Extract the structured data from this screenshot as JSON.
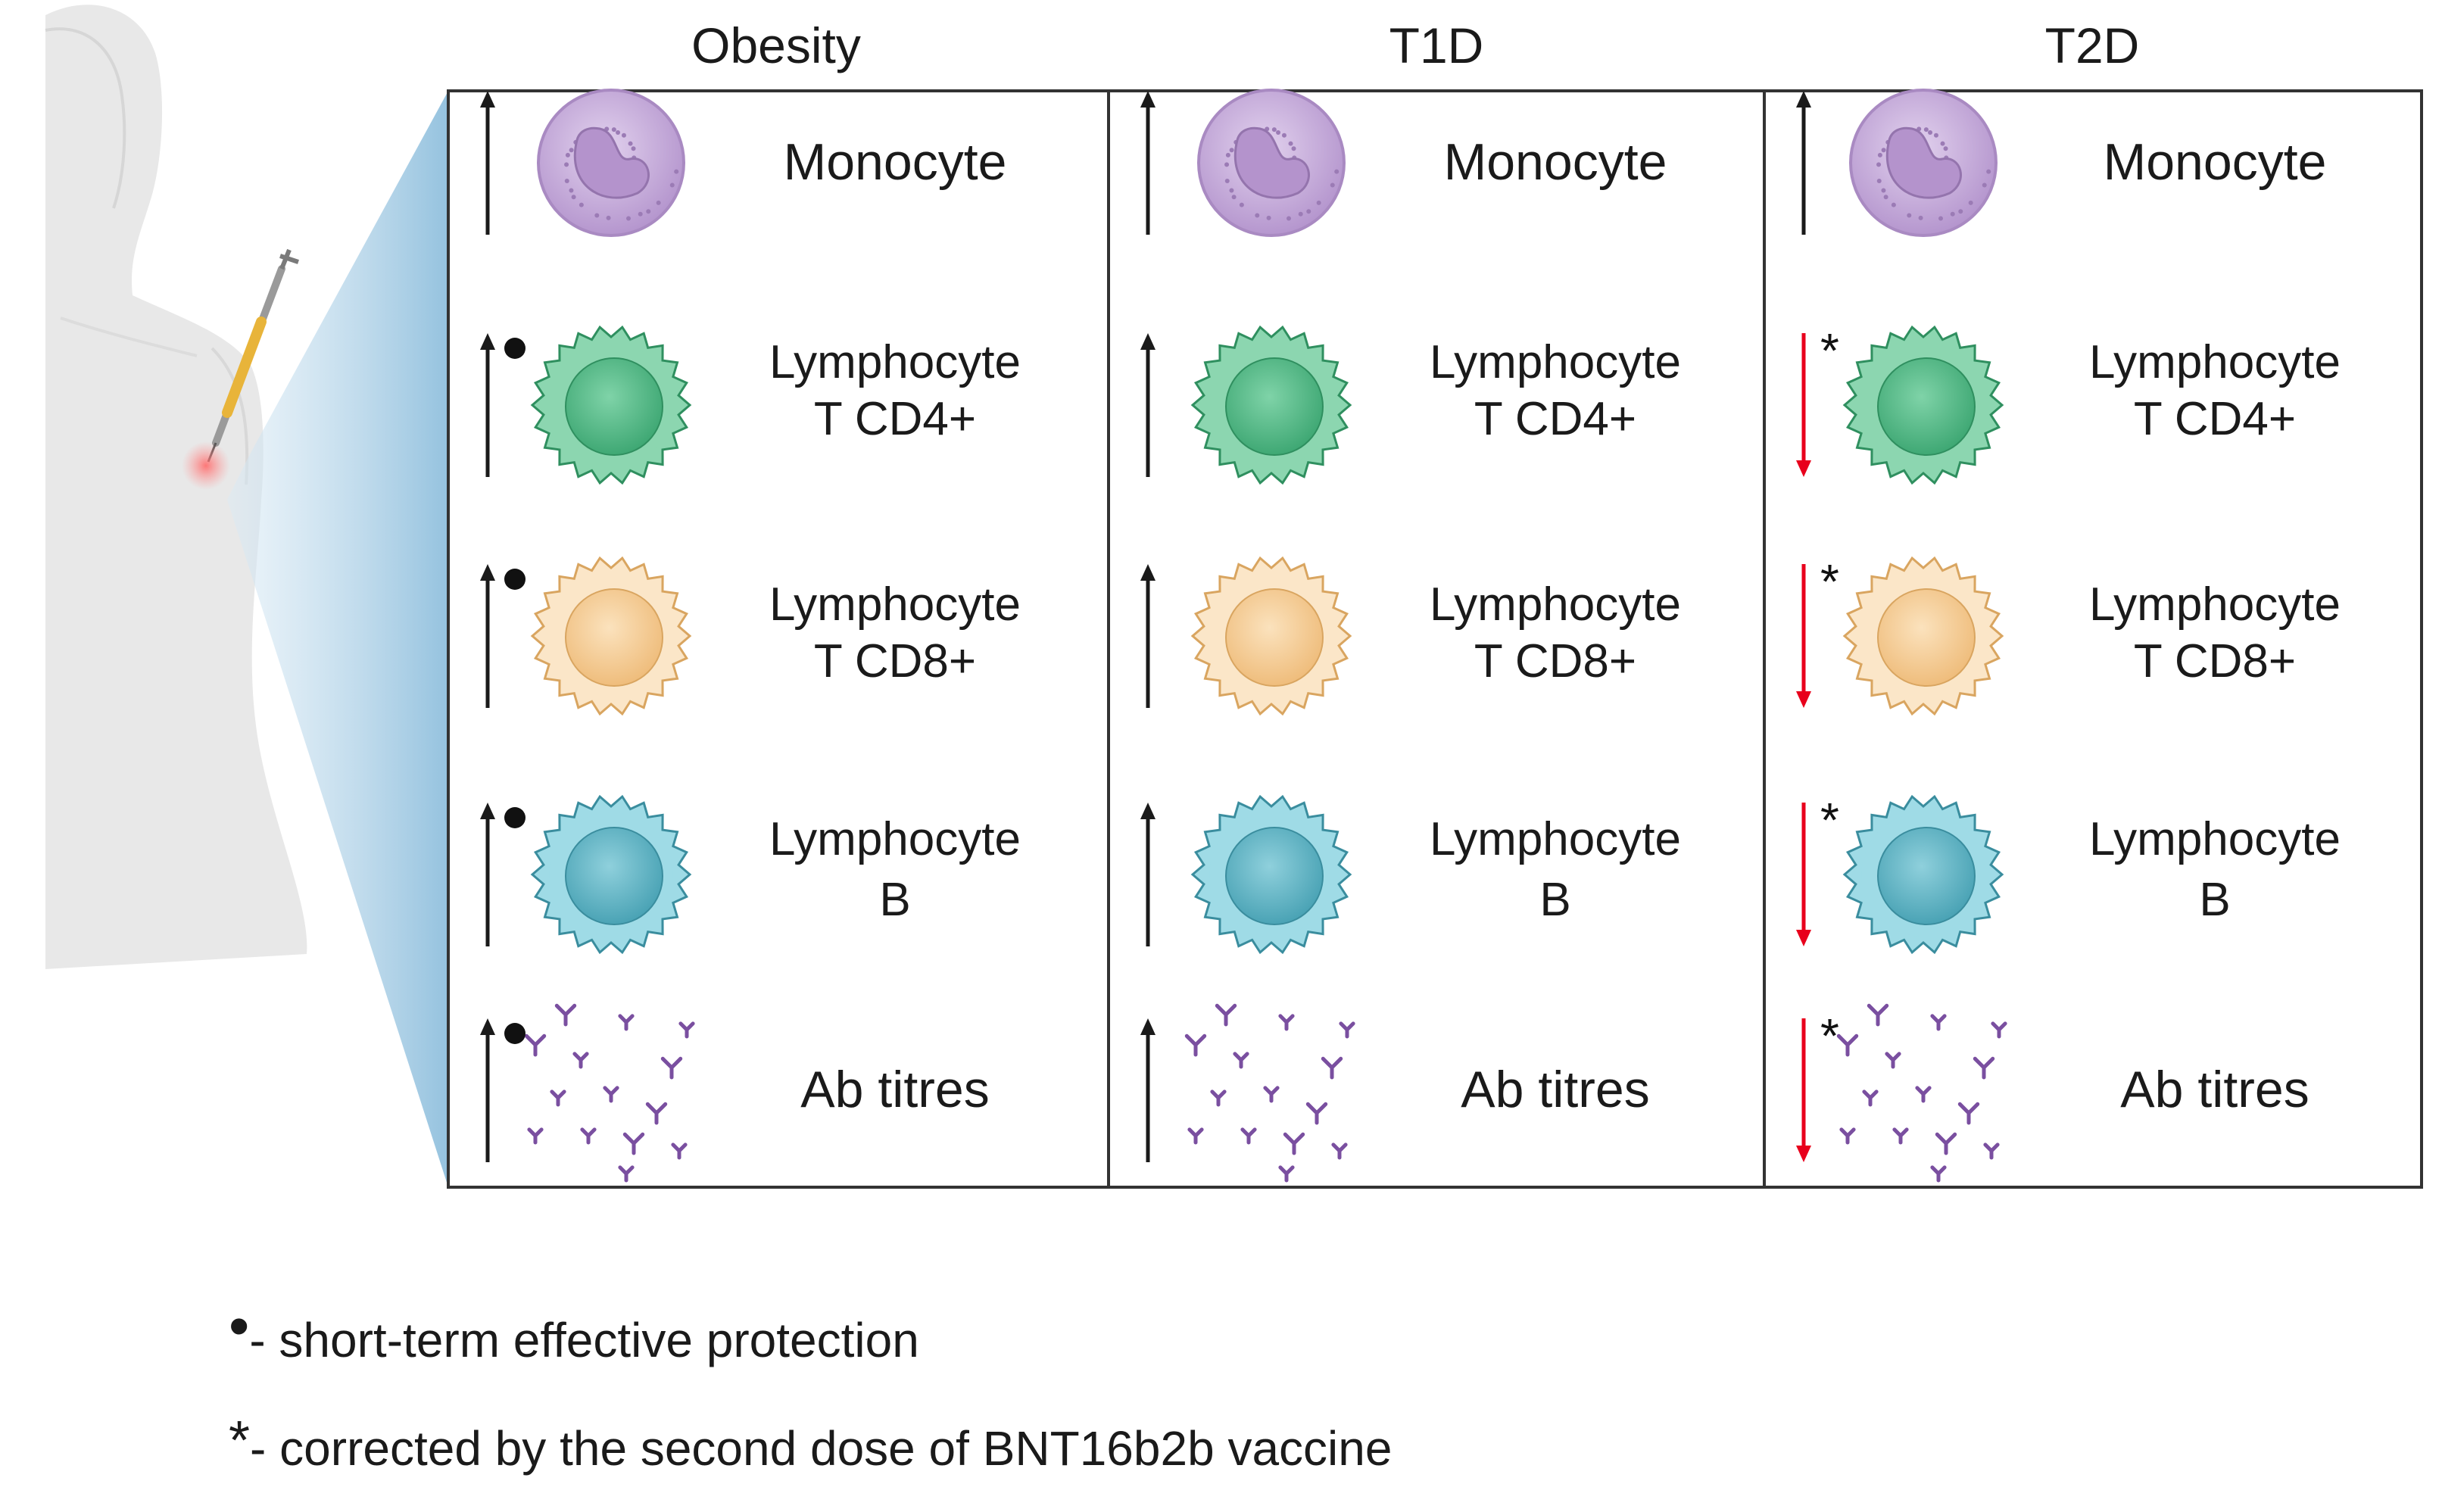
{
  "columns": [
    {
      "title": "Obesity",
      "rows": [
        {
          "cell": "monocyte",
          "label_1": "Monocyte",
          "label_2": "",
          "direction": "up",
          "marker": "none"
        },
        {
          "cell": "cd4",
          "label_1": "Lymphocyte",
          "label_2": "T CD4+",
          "direction": "up",
          "marker": "dot"
        },
        {
          "cell": "cd8",
          "label_1": "Lymphocyte",
          "label_2": "T CD8+",
          "direction": "up",
          "marker": "dot"
        },
        {
          "cell": "b",
          "label_1": "Lymphocyte",
          "label_2": "B",
          "direction": "up",
          "marker": "dot"
        },
        {
          "cell": "ab",
          "label_1": "Ab titres",
          "label_2": "",
          "direction": "up",
          "marker": "dot"
        }
      ]
    },
    {
      "title": "T1D",
      "rows": [
        {
          "cell": "monocyte",
          "label_1": "Monocyte",
          "label_2": "",
          "direction": "up",
          "marker": "none"
        },
        {
          "cell": "cd4",
          "label_1": "Lymphocyte",
          "label_2": "T CD4+",
          "direction": "up",
          "marker": "none"
        },
        {
          "cell": "cd8",
          "label_1": "Lymphocyte",
          "label_2": "T CD8+",
          "direction": "up",
          "marker": "none"
        },
        {
          "cell": "b",
          "label_1": "Lymphocyte",
          "label_2": "B",
          "direction": "up",
          "marker": "none"
        },
        {
          "cell": "ab",
          "label_1": "Ab titres",
          "label_2": "",
          "direction": "up",
          "marker": "none"
        }
      ]
    },
    {
      "title": "T2D",
      "rows": [
        {
          "cell": "monocyte",
          "label_1": "Monocyte",
          "label_2": "",
          "direction": "up",
          "marker": "none"
        },
        {
          "cell": "cd4",
          "label_1": "Lymphocyte",
          "label_2": "T CD4+",
          "direction": "down",
          "marker": "star"
        },
        {
          "cell": "cd8",
          "label_1": "Lymphocyte",
          "label_2": "T CD8+",
          "direction": "down",
          "marker": "star"
        },
        {
          "cell": "b",
          "label_1": "Lymphocyte",
          "label_2": "B",
          "direction": "down",
          "marker": "star"
        },
        {
          "cell": "ab",
          "label_1": "Ab titres",
          "label_2": "",
          "direction": "down",
          "marker": "star"
        }
      ]
    }
  ],
  "legend": {
    "dot_symbol": "•",
    "dot_text": "- short-term effective protection",
    "star_symbol": "*",
    "star_text": "- corrected by the second dose of BNT16b2b vaccine"
  },
  "colors": {
    "up_arrow": "#1a1a1a",
    "down_arrow": "#e8001c",
    "monocyte": "#c7acd9",
    "cd4": "#5cc08e",
    "cd8": "#f6cf9a",
    "b": "#6cbccb",
    "antibody": "#7a4fa0",
    "body": "#e6e6e6",
    "zoom_wedge": "#a9cde4"
  },
  "icons": {
    "figure": "human-torso-icon",
    "syringe": "syringe-icon",
    "monocyte": "monocyte-cell-icon",
    "cd4": "cd4-t-cell-icon",
    "cd8": "cd8-t-cell-icon",
    "b": "b-cell-icon",
    "ab": "antibody-cluster-icon"
  }
}
